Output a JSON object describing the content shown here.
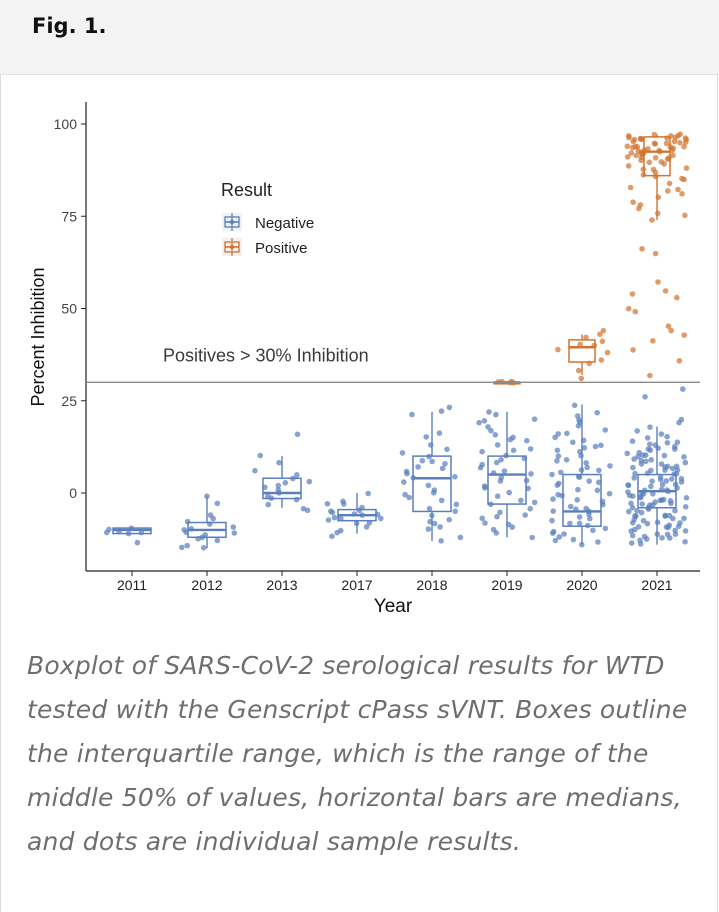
{
  "figure": {
    "label": "Fig. 1.",
    "caption": "Boxplot of SARS-CoV-2 serological results for WTD tested with the Genscript cPass sVNT. Boxes outline the interquartile range, which is the range of the middle 50% of values, horizontal bars are medians, and dots are individual sample results."
  },
  "chart_data": {
    "type": "box",
    "xlabel": "Year",
    "ylabel": "Percent Inhibition",
    "categories": [
      "2011",
      "2012",
      "2013",
      "2017",
      "2018",
      "2019",
      "2020",
      "2021"
    ],
    "ylim": [
      -20,
      105
    ],
    "yticks": [
      0,
      25,
      50,
      75,
      100
    ],
    "threshold": {
      "value": 30,
      "label": "Positives > 30% Inhibition"
    },
    "legend": {
      "title": "Result",
      "entries": [
        {
          "name": "Negative",
          "color": "#5a7fbd"
        },
        {
          "name": "Positive",
          "color": "#d2742f"
        }
      ]
    },
    "colors": {
      "negative": "#5a7fbd",
      "positive": "#d2742f"
    },
    "series": [
      {
        "name": "Negative",
        "boxes": [
          {
            "category": "2011",
            "q1": -11,
            "median": -10,
            "q3": -9.5,
            "whisker_low": -11,
            "whisker_high": -9.5
          },
          {
            "category": "2012",
            "q1": -12,
            "median": -10,
            "q3": -8,
            "whisker_low": -15,
            "whisker_high": -1
          },
          {
            "category": "2013",
            "q1": -1.5,
            "median": 0,
            "q3": 4,
            "whisker_low": -4,
            "whisker_high": 10
          },
          {
            "category": "2017",
            "q1": -7.5,
            "median": -6,
            "q3": -4.5,
            "whisker_low": -11,
            "whisker_high": 0
          },
          {
            "category": "2018",
            "q1": -5,
            "median": 4,
            "q3": 10,
            "whisker_low": -13,
            "whisker_high": 22
          },
          {
            "category": "2019",
            "q1": -3,
            "median": 5,
            "q3": 10,
            "whisker_low": -12,
            "whisker_high": 22
          },
          {
            "category": "2020",
            "q1": -9,
            "median": -5,
            "q3": 5,
            "whisker_low": -14,
            "whisker_high": 24
          },
          {
            "category": "2021",
            "q1": -4,
            "median": 0.5,
            "q3": 5,
            "whisker_low": -14,
            "whisker_high": 18
          }
        ],
        "points": [
          {
            "category": "2011",
            "values": [
              -9.5,
              -10,
              -11,
              -10.5,
              -13.5,
              -10.2,
              -11
            ]
          },
          {
            "category": "2012",
            "values": [
              -1,
              -3,
              -6,
              -8,
              -9,
              -10,
              -11,
              -12,
              -13,
              -14,
              -15,
              -8.5,
              -10.5,
              -12.5,
              -14.5,
              -9.5,
              -11.5,
              -7
            ]
          },
          {
            "category": "2013",
            "values": [
              16,
              10,
              8,
              6,
              4,
              3,
              2,
              1,
              0,
              -1,
              -2,
              -3,
              -4,
              -4.5,
              5,
              2.5,
              -1.5,
              1.5
            ]
          },
          {
            "category": "2017",
            "values": [
              0,
              -2,
              -3,
              -4,
              -5,
              -5.5,
              -6,
              -6.5,
              -7,
              -7.5,
              -8,
              -9,
              -10,
              -11,
              -12,
              -4.5,
              -6,
              -8.5,
              -3,
              -5,
              -7
            ]
          },
          {
            "category": "2018",
            "values": [
              23,
              21,
              16,
              15,
              13,
              11,
              10,
              9,
              8,
              7,
              6,
              5,
              4,
              3,
              2,
              1,
              0,
              -1,
              -2,
              -3,
              -4,
              -5,
              -6,
              -7,
              -8,
              -9,
              -10,
              -12,
              -13,
              12,
              8.5,
              4.5,
              -0.5,
              -7.5,
              22,
              6.5
            ]
          },
          {
            "category": "2019",
            "values": [
              22,
              21,
              20,
              19,
              18,
              17,
              16,
              15,
              14,
              13,
              12,
              11,
              10,
              9,
              8,
              7,
              6,
              5,
              4,
              3,
              2,
              1,
              0,
              -1,
              -2,
              -3,
              -4,
              -5,
              -6,
              -7,
              -8,
              -9,
              -10,
              -11,
              -12,
              9.5,
              5.5,
              1.5,
              -2.5,
              -6.5,
              14.5,
              19.5,
              3.5,
              -8.5,
              11.5,
              7.5
            ]
          },
          {
            "category": "2020",
            "values": [
              24,
              22,
              20,
              18,
              17,
              16,
              15,
              14,
              13,
              12,
              11,
              10,
              9,
              8,
              7,
              6,
              5,
              4,
              3,
              2,
              1,
              0,
              -1,
              -2,
              -3,
              -4,
              -5,
              -6,
              -7,
              -8,
              -9,
              -10,
              -11,
              -12,
              -13,
              -14,
              14.5,
              11.5,
              8.5,
              5.5,
              2.5,
              -0.5,
              -3.5,
              -6.5,
              -9.5,
              -12.5,
              19,
              6,
              -5,
              -8,
              10,
              -2,
              3,
              -11,
              16,
              0.5,
              -4.5,
              -7.5,
              12.5,
              -10.5,
              4.5,
              -1.5,
              21,
              -13.5,
              7.5
            ]
          },
          {
            "category": "2021",
            "values": [
              28,
              26,
              20,
              19,
              18,
              17,
              16,
              15,
              14,
              13,
              12,
              11,
              10,
              9,
              8,
              7,
              6,
              5,
              4,
              3,
              2,
              1,
              0,
              -1,
              -2,
              -3,
              -4,
              -5,
              -6,
              -7,
              -8,
              -9,
              -10,
              -11,
              -12,
              -13,
              -14,
              13.5,
              12.5,
              11.5,
              10.5,
              9.5,
              8.5,
              7.5,
              6.5,
              5.5,
              4.5,
              3.5,
              2.5,
              1.5,
              0.5,
              -0.5,
              -1.5,
              -2.5,
              -3.5,
              -4.5,
              -5.5,
              -6.5,
              -7.5,
              -8.5,
              -9.5,
              -10.5,
              -11.5,
              -12.5,
              -13.5,
              14,
              9,
              6,
              3,
              0,
              -3,
              -6,
              -9,
              -12,
              12,
              8,
              4,
              2,
              -2,
              -4,
              -8,
              -10,
              10,
              5,
              1,
              -1,
              -5,
              -7,
              -11,
              13,
              7,
              -3,
              -6,
              15,
              11,
              4,
              0,
              -2,
              -7,
              -12,
              9,
              6,
              2,
              -1,
              -4,
              -9,
              -13,
              8,
              5,
              3,
              1,
              -3,
              -5,
              -8,
              -10,
              12,
              7,
              0,
              -6,
              -11,
              10,
              2,
              -2,
              -9
            ]
          }
        ]
      },
      {
        "name": "Positive",
        "boxes": [
          {
            "category": "2019",
            "q1": 30,
            "median": 30,
            "q3": 30,
            "whisker_low": 30,
            "whisker_high": 30
          },
          {
            "category": "2020",
            "q1": 35.5,
            "median": 39.5,
            "q3": 41.5,
            "whisker_low": 32,
            "whisker_high": 43
          },
          {
            "category": "2021",
            "q1": 86,
            "median": 92.5,
            "q3": 96.5,
            "whisker_low": 74,
            "whisker_high": 97
          }
        ],
        "points": [
          {
            "category": "2019",
            "values": [
              30,
              30,
              30,
              30,
              30
            ]
          },
          {
            "category": "2020",
            "values": [
              44,
              43,
              42,
              41,
              40,
              39,
              38,
              36,
              35,
              33,
              31,
              40.5
            ]
          },
          {
            "category": "2021",
            "values": [
              97,
              96.5,
              96,
              95.5,
              95,
              94.5,
              94,
              93.5,
              93,
              92.5,
              92,
              91.5,
              91,
              90.5,
              90,
              89.5,
              89,
              88.5,
              88,
              87.5,
              87,
              86.5,
              86,
              85,
              84,
              83,
              82,
              81,
              80,
              79,
              78,
              77,
              76,
              75,
              74,
              66,
              65,
              57,
              55,
              54,
              53,
              50,
              49,
              45,
              44,
              43,
              41,
              39,
              36,
              32,
              97,
              96,
              95,
              94,
              93,
              92,
              91,
              90,
              97,
              96.5,
              96,
              95.5,
              95,
              94.5,
              94,
              93.5,
              93,
              92.5,
              92,
              91.5,
              91,
              90.5,
              97,
              96,
              95,
              94,
              93,
              92,
              88,
              85,
              82,
              97,
              96,
              95,
              94,
              93
            ]
          }
        ]
      }
    ]
  }
}
